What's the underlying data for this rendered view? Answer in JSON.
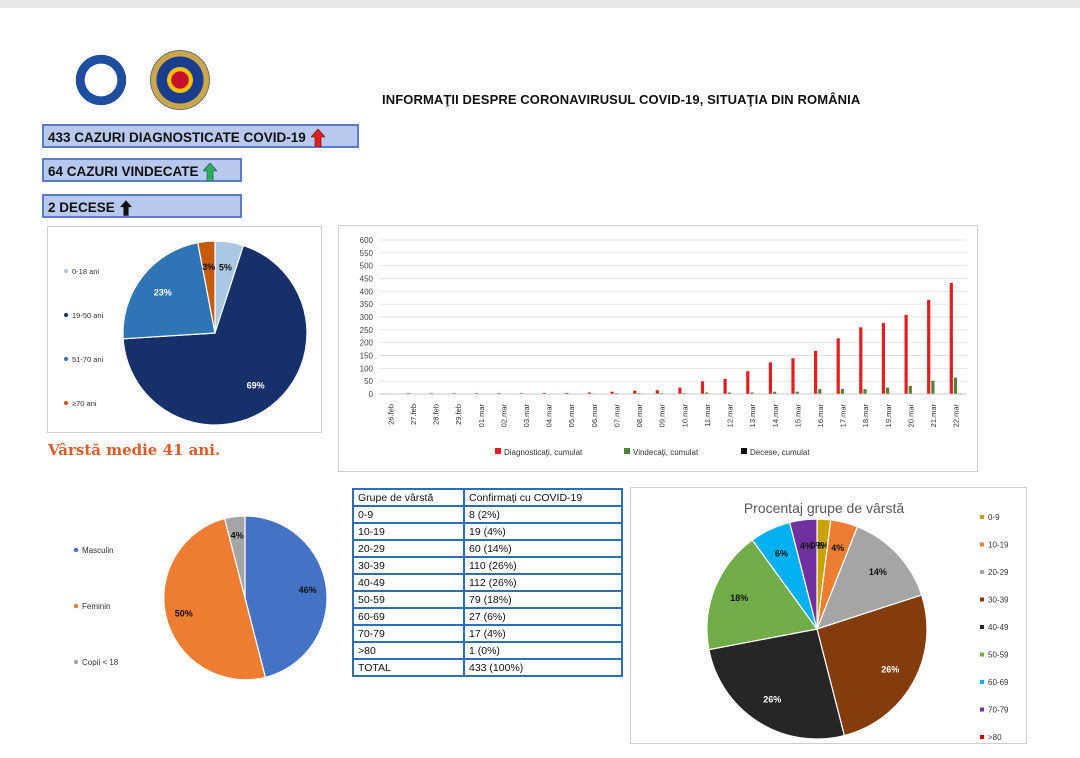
{
  "header": {
    "title": "INFORMAŢII DESPRE CORONAVIRUSUL COVID-19, SITUAŢIA DIN ROMÂNIA"
  },
  "stats": {
    "diagnosed": "433 CAZURI DIAGNOSTICATE COVID-19",
    "recovered": "64 CAZURI VINDECATE",
    "deaths": "2 DECESE"
  },
  "colors": {
    "arrow_up_red": "#e02020",
    "arrow_up_green": "#2eae5a",
    "arrow_up_black": "#111111",
    "stat_fill": "#b8c8ee",
    "stat_border": "#5b7ccc",
    "table_border": "#2d6fb2"
  },
  "age_note": "Vârstă medie 41 ani.",
  "chart_data": [
    {
      "type": "pie",
      "id": "age-groups-pie",
      "categories": [
        "0-18 ani",
        "19-50 ani",
        "51-70 ani",
        "≥70 ani"
      ],
      "values": [
        5,
        69,
        23,
        3
      ],
      "labels": [
        "5%",
        "69%",
        "23%",
        "3%"
      ],
      "colors": [
        "#aac8e6",
        "#17306a",
        "#2f75b5",
        "#c55a11"
      ],
      "legend_position": "left"
    },
    {
      "type": "bar",
      "id": "cumulative-cases-bar",
      "categories": [
        "26.feb",
        "27.feb",
        "28.feb",
        "29.feb",
        "01.mar",
        "02.mar",
        "03.mar",
        "04.mar",
        "05.mar",
        "06.mar",
        "07.mar",
        "08.mar",
        "09.mar",
        "10.mar",
        "11.mar",
        "12.mar",
        "13.mar",
        "14.mar",
        "15.mar",
        "16.mar",
        "17.mar",
        "18.mar",
        "19.mar",
        "20.mar",
        "21.mar",
        "22.mar"
      ],
      "series": [
        {
          "name": "Diagnosticaţi, cumulat",
          "color": "#e02020",
          "values": [
            1,
            3,
            3,
            3,
            3,
            3,
            3,
            4,
            4,
            6,
            9,
            13,
            15,
            25,
            49,
            59,
            89,
            123,
            139,
            168,
            217,
            260,
            277,
            308,
            367,
            433
          ]
        },
        {
          "name": "Vindecaţi, cumulat",
          "color": "#548235",
          "values": [
            0,
            0,
            0,
            0,
            0,
            0,
            0,
            0,
            0,
            2,
            3,
            3,
            3,
            3,
            6,
            6,
            6,
            9,
            9,
            19,
            19,
            19,
            25,
            31,
            52,
            64
          ]
        },
        {
          "name": "Decese, cumulat",
          "color": "#111111",
          "values": [
            0,
            0,
            0,
            0,
            0,
            0,
            0,
            0,
            0,
            0,
            0,
            0,
            0,
            0,
            0,
            0,
            0,
            0,
            0,
            0,
            0,
            0,
            0,
            0,
            0,
            2
          ]
        }
      ],
      "ylim": [
        0,
        600
      ],
      "yticks": [
        0,
        50,
        100,
        150,
        200,
        250,
        300,
        350,
        400,
        450,
        500,
        550,
        600
      ],
      "grid": true,
      "legend_position": "bottom"
    },
    {
      "type": "pie",
      "id": "gender-pie",
      "categories": [
        "Masculin",
        "Feminin",
        "Copii < 18"
      ],
      "values": [
        46,
        50,
        4
      ],
      "labels": [
        "46%",
        "50%",
        "4%"
      ],
      "colors": [
        "#4472c4",
        "#ed7d31",
        "#a5a5a5"
      ],
      "legend_position": "left"
    },
    {
      "type": "pie",
      "id": "age-percentage-pie",
      "title": "Procentaj grupe de vârstă",
      "categories": [
        "0-9",
        "10-19",
        "20-29",
        "30-39",
        "40-49",
        "50-59",
        "60-69",
        "70-79",
        ">80"
      ],
      "values": [
        2,
        4,
        14,
        26,
        26,
        18,
        6,
        4,
        0
      ],
      "labels": [
        "2%",
        "4%",
        "14%",
        "26%",
        "26%",
        "18%",
        "6%",
        "4%",
        "0%"
      ],
      "colors": [
        "#c9a400",
        "#ed7d31",
        "#a5a5a5",
        "#843c0c",
        "#262626",
        "#70ad47",
        "#00b0f0",
        "#7030a0",
        "#c00000"
      ],
      "legend_position": "right"
    },
    {
      "type": "table",
      "id": "age-confirmed-table",
      "columns": [
        "Grupe de vârstă",
        "Confirmaţi cu COVID-19"
      ],
      "rows": [
        [
          "0-9",
          "8 (2%)"
        ],
        [
          "10-19",
          "19 (4%)"
        ],
        [
          "20-29",
          "60 (14%)"
        ],
        [
          "30-39",
          "110 (26%)"
        ],
        [
          "40-49",
          "112 (26%)"
        ],
        [
          "50-59",
          "79 (18%)"
        ],
        [
          "60-69",
          "27 (6%)"
        ],
        [
          "70-79",
          "17 (4%)"
        ],
        [
          ">80",
          "1 (0%)"
        ],
        [
          "TOTAL",
          "433 (100%)"
        ]
      ]
    }
  ]
}
